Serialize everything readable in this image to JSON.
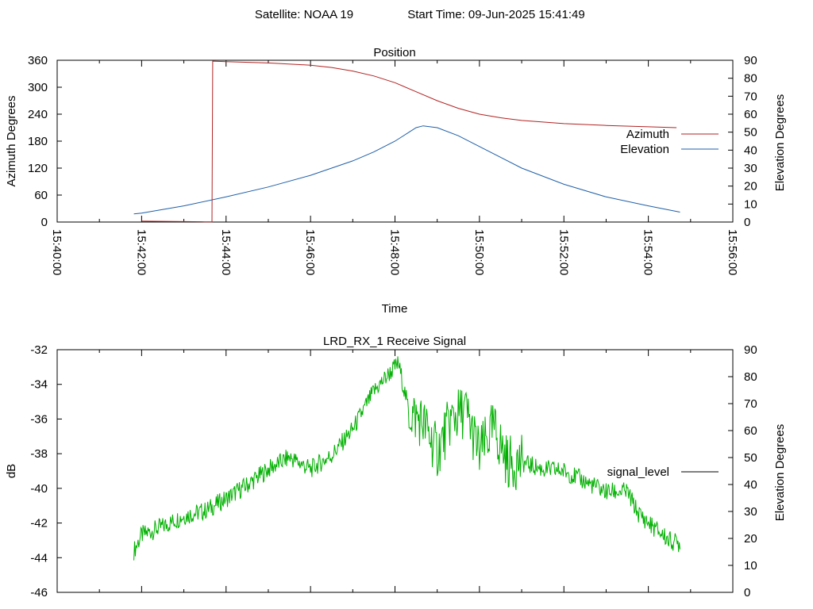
{
  "header": {
    "satellite": "Satellite: NOAA 19",
    "start_time": "Start Time: 09-Jun-2025 15:41:49"
  },
  "colors": {
    "azimuth": "#b22222",
    "elevation": "#1f5fa8",
    "signal": "#00b000",
    "axis": "#000000"
  },
  "chart_data": [
    {
      "type": "line",
      "title": "Position",
      "xlabel": "Time",
      "ylabel": "Azimuth Degrees",
      "y2label": "Elevation Degrees",
      "xlim": [
        "15:40:00",
        "15:56:00"
      ],
      "xticks": [
        "15:40:00",
        "15:42:00",
        "15:44:00",
        "15:46:00",
        "15:48:00",
        "15:50:00",
        "15:52:00",
        "15:54:00",
        "15:56:00"
      ],
      "ylim": [
        0,
        360
      ],
      "yticks": [
        0,
        60,
        120,
        180,
        240,
        300,
        360
      ],
      "y2lim": [
        0,
        90
      ],
      "y2ticks": [
        0,
        10,
        20,
        30,
        40,
        50,
        60,
        70,
        80,
        90
      ],
      "legend_position": "right",
      "grid": false,
      "series": [
        {
          "name": "Azimuth",
          "axis": "left",
          "x": [
            "15:42:00",
            "15:43:00",
            "15:43:30",
            "15:43:40",
            "15:43:41",
            "15:44:00",
            "15:45:00",
            "15:46:00",
            "15:46:30",
            "15:47:00",
            "15:47:30",
            "15:48:00",
            "15:48:30",
            "15:49:00",
            "15:49:30",
            "15:50:00",
            "15:50:30",
            "15:51:00",
            "15:52:00",
            "15:53:00",
            "15:54:00",
            "15:54:40"
          ],
          "values": [
            2,
            1,
            0.5,
            0.5,
            358,
            357,
            354,
            349,
            344,
            336,
            325,
            310,
            290,
            270,
            253,
            240,
            232,
            226,
            219,
            215,
            212,
            210
          ]
        },
        {
          "name": "Elevation",
          "axis": "right",
          "x": [
            "15:41:49",
            "15:42:00",
            "15:43:00",
            "15:44:00",
            "15:45:00",
            "15:46:00",
            "15:47:00",
            "15:47:30",
            "15:48:00",
            "15:48:20",
            "15:48:30",
            "15:48:40",
            "15:49:00",
            "15:49:30",
            "15:50:00",
            "15:51:00",
            "15:52:00",
            "15:53:00",
            "15:54:00",
            "15:54:45"
          ],
          "values": [
            4.5,
            5,
            9,
            14,
            19.5,
            26,
            34,
            39,
            45,
            50,
            52.5,
            53.5,
            52.5,
            48,
            42,
            30,
            21,
            14,
            9,
            5.5
          ]
        }
      ]
    },
    {
      "type": "line",
      "title": "LRD_RX_1 Receive Signal",
      "ylabel": "dB",
      "y2label": "Elevation Degrees",
      "xlim": [
        "15:40:00",
        "15:56:00"
      ],
      "ylim": [
        -46,
        -32
      ],
      "yticks": [
        -46,
        -44,
        -42,
        -40,
        -38,
        -36,
        -34,
        -32
      ],
      "y2lim": [
        0,
        90
      ],
      "y2ticks": [
        0,
        10,
        20,
        30,
        40,
        50,
        60,
        70,
        80,
        90
      ],
      "legend_position": "right",
      "grid": false,
      "series": [
        {
          "name": "signal_level",
          "x": [
            "15:41:49",
            "15:42:00",
            "15:42:30",
            "15:43:00",
            "15:43:30",
            "15:44:00",
            "15:44:30",
            "15:45:00",
            "15:45:30",
            "15:46:00",
            "15:46:30",
            "15:47:00",
            "15:47:30",
            "15:48:00",
            "15:48:05",
            "15:48:20",
            "15:48:40",
            "15:49:00",
            "15:49:20",
            "15:49:40",
            "15:50:00",
            "15:50:20",
            "15:50:40",
            "15:51:00",
            "15:51:30",
            "15:52:00",
            "15:52:30",
            "15:53:00",
            "15:53:30",
            "15:53:45",
            "15:54:00",
            "15:54:30",
            "15:54:45"
          ],
          "values": [
            -43.6,
            -42.7,
            -42.2,
            -41.6,
            -41.3,
            -40.6,
            -39.8,
            -38.9,
            -38.2,
            -38.9,
            -38.1,
            -36.6,
            -34.4,
            -33.0,
            -32.8,
            -35.6,
            -36.2,
            -37.9,
            -36.0,
            -35.5,
            -38.0,
            -36.5,
            -38.5,
            -38.5,
            -38.9,
            -39.0,
            -39.6,
            -40.2,
            -40.2,
            -41.4,
            -42.0,
            -43.0,
            -43.2
          ]
        }
      ]
    }
  ]
}
